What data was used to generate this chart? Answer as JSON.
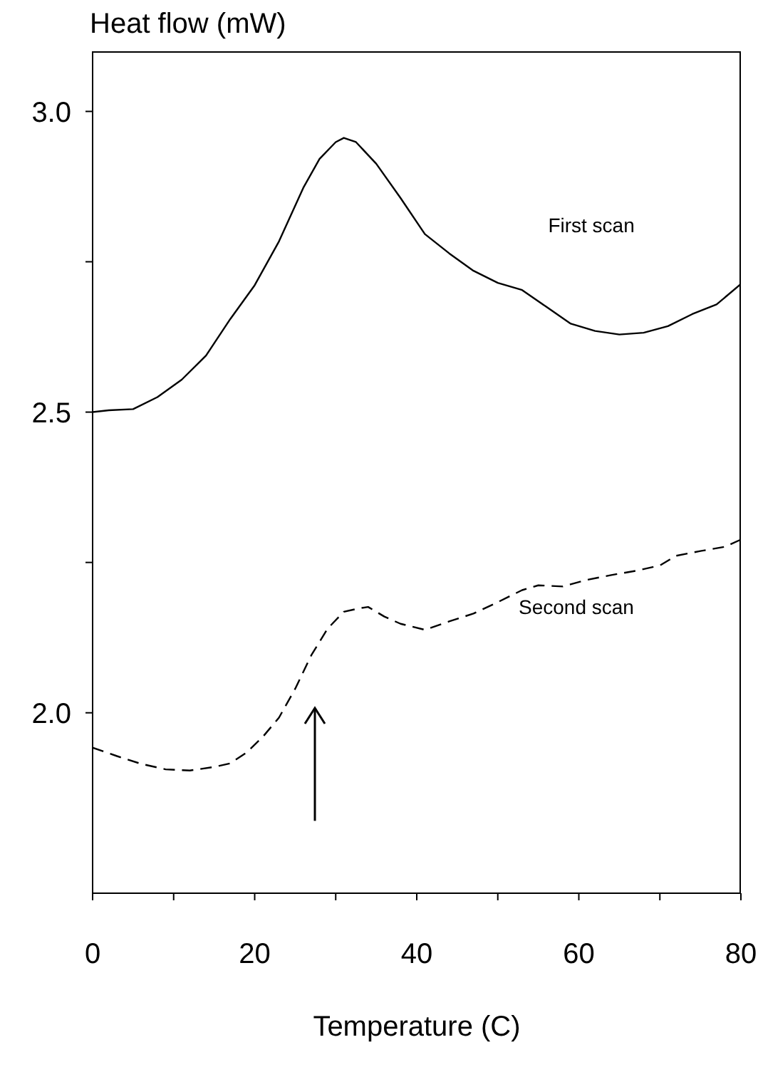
{
  "chart_data": {
    "type": "line",
    "xlabel": "Temperature (C)",
    "ylabel": "Heat flow (mW)",
    "xlim": [
      0,
      80
    ],
    "xticks": [
      0,
      {
        "value": 10,
        "label": null
      },
      20,
      {
        "value": 30,
        "label": null
      },
      40,
      {
        "value": 50,
        "label": null
      },
      60,
      {
        "value": 70,
        "label": null
      },
      80
    ],
    "ylim": [
      1.7,
      3.1
    ],
    "yticks": [
      {
        "value": 2,
        "label": "2.0"
      },
      {
        "value": 2.25,
        "label": null
      },
      {
        "value": 2.5,
        "label": "2.5"
      },
      {
        "value": 2.75,
        "label": null
      },
      {
        "value": 3,
        "label": "3.0"
      }
    ],
    "marker": "none",
    "series": [
      {
        "name": "First scan",
        "color": "#000000",
        "line_style": "solid",
        "x": [
          0,
          2,
          5,
          8,
          11,
          14,
          17,
          20,
          23,
          26,
          28,
          30,
          31,
          32.5,
          35,
          38,
          41,
          44,
          47,
          50,
          53,
          56,
          59,
          62,
          65,
          68,
          71,
          74,
          77,
          80
        ],
        "values": [
          2.5,
          2.503,
          2.505,
          2.525,
          2.554,
          2.594,
          2.655,
          2.711,
          2.784,
          2.873,
          2.921,
          2.949,
          2.956,
          2.949,
          2.913,
          2.856,
          2.796,
          2.764,
          2.735,
          2.715,
          2.703,
          2.675,
          2.647,
          2.635,
          2.629,
          2.632,
          2.643,
          2.663,
          2.679,
          2.713
        ]
      },
      {
        "name": "Second scan",
        "color": "#000000",
        "line_style": "dashed",
        "x": [
          0,
          3,
          6,
          9,
          12,
          15,
          17,
          19,
          21,
          23,
          25,
          27,
          29,
          31,
          33,
          34,
          36,
          38,
          41,
          44,
          47,
          50,
          53,
          55,
          58,
          61,
          64,
          67,
          70,
          72,
          75,
          78,
          80
        ],
        "values": [
          1.942,
          1.928,
          1.915,
          1.906,
          1.904,
          1.91,
          1.916,
          1.934,
          1.96,
          1.992,
          2.04,
          2.096,
          2.14,
          2.168,
          2.174,
          2.176,
          2.16,
          2.148,
          2.138,
          2.152,
          2.165,
          2.184,
          2.204,
          2.212,
          2.21,
          2.221,
          2.229,
          2.236,
          2.245,
          2.261,
          2.269,
          2.276,
          2.288
        ]
      }
    ]
  }
}
